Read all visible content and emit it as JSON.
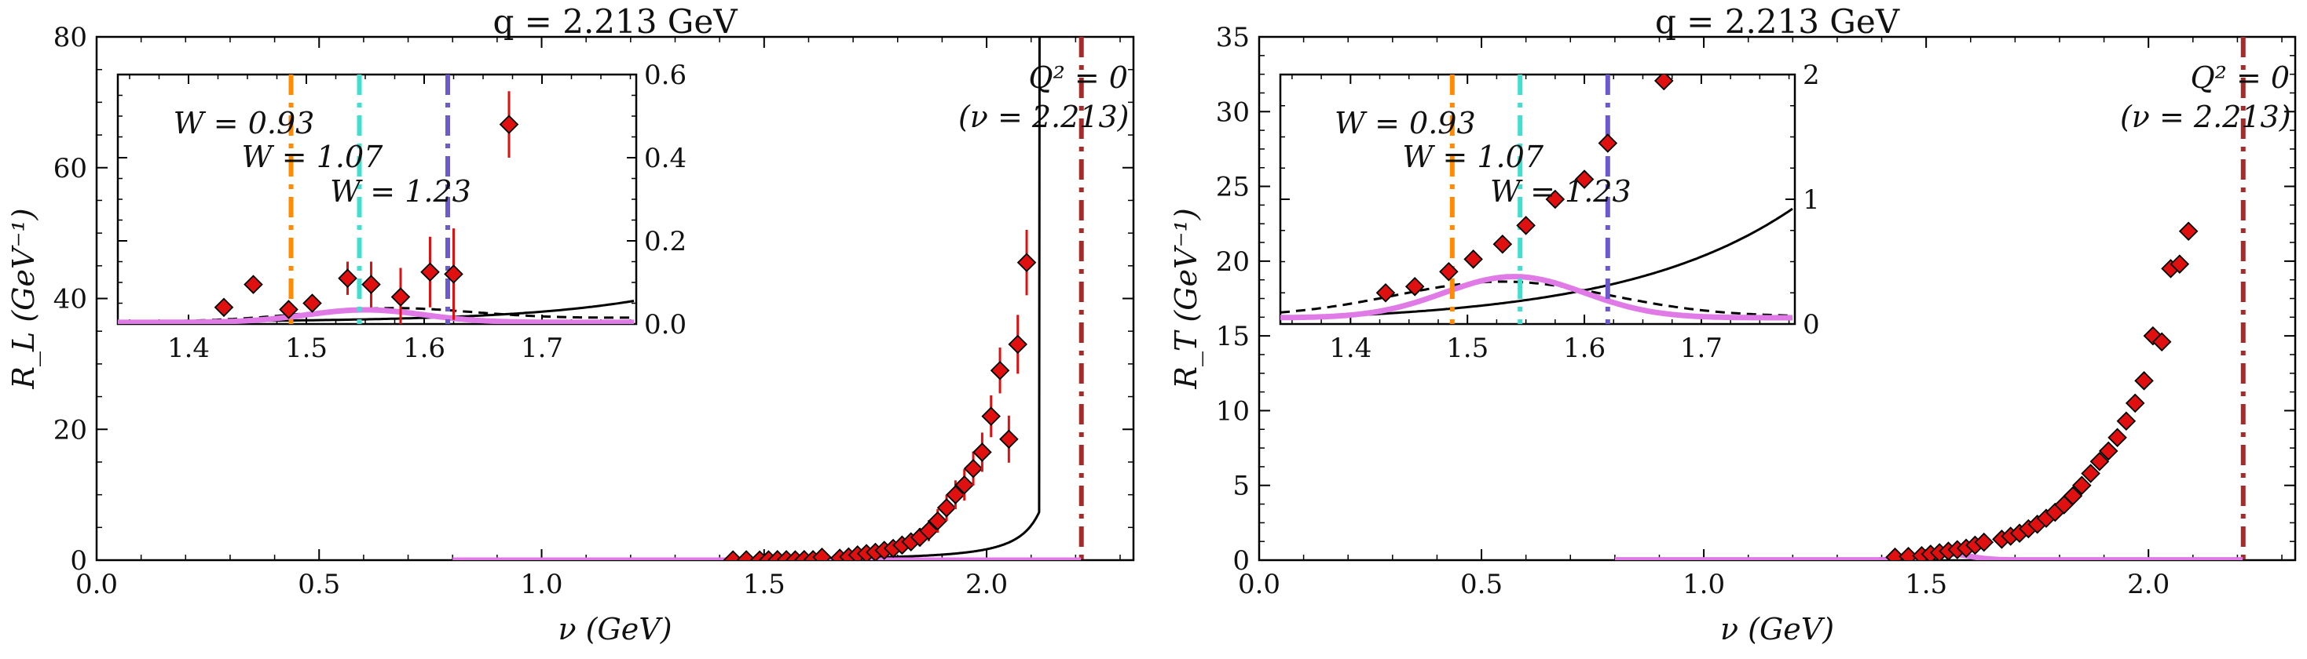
{
  "chart_data": [
    {
      "type": "scatter",
      "title": "q = 2.213 GeV",
      "xlabel": "ν (GeV)",
      "ylabel": "R_L (GeV⁻¹)",
      "xlim": [
        0.0,
        2.33
      ],
      "ylim": [
        0,
        80
      ],
      "xticks": [
        "0.0",
        "0.5",
        "1.0",
        "1.5",
        "2.0"
      ],
      "yticks": [
        "0",
        "20",
        "40",
        "60",
        "80"
      ],
      "grid": false,
      "vline": {
        "x": 2.213,
        "color": "#a52a2a",
        "label": "Q² = 0",
        "sublabel": "(ν = 2.213)"
      },
      "series": [
        {
          "kind": "points",
          "color": "#e01010",
          "x": [
            1.43,
            1.46,
            1.49,
            1.51,
            1.53,
            1.55,
            1.57,
            1.59,
            1.61,
            1.63,
            1.67,
            1.69,
            1.71,
            1.73,
            1.75,
            1.77,
            1.79,
            1.81,
            1.83,
            1.85,
            1.87,
            1.89,
            1.91,
            1.93,
            1.95,
            1.97,
            1.99,
            2.01,
            2.03,
            2.05,
            2.07,
            2.09
          ],
          "y": [
            0.04,
            0.06,
            0.03,
            0.05,
            0.08,
            0.07,
            0.05,
            0.09,
            0.08,
            0.45,
            0.3,
            0.5,
            0.8,
            1.0,
            1.2,
            1.5,
            1.8,
            2.3,
            2.8,
            3.5,
            4.5,
            6.0,
            8.0,
            10.0,
            11.5,
            14.0,
            16.5,
            22.0,
            29.0,
            18.5,
            33.0,
            45.5
          ],
          "yerr": [
            0.05,
            0.05,
            0.05,
            0.05,
            0.1,
            0.1,
            0.1,
            0.1,
            0.1,
            0.3,
            0.4,
            0.5,
            0.6,
            0.7,
            0.8,
            0.9,
            1.0,
            1.1,
            1.2,
            1.4,
            1.6,
            1.8,
            2.0,
            2.2,
            2.4,
            2.6,
            3.0,
            3.2,
            3.5,
            3.6,
            4.5,
            5.0
          ]
        },
        {
          "kind": "curve",
          "color": "#000000",
          "dash": "",
          "func": "rl_solid"
        },
        {
          "kind": "curve",
          "color": "#000000",
          "dash": "12,8",
          "func": "rl_dash"
        },
        {
          "kind": "curve",
          "color": "#e07ae6",
          "dash": "",
          "func": "rl_magenta"
        }
      ],
      "inset": {
        "xlim": [
          1.34,
          1.78
        ],
        "ylim": [
          0,
          0.6
        ],
        "xticks": [
          "1.4",
          "1.5",
          "1.6",
          "1.7"
        ],
        "yticks": [
          "0.0",
          "0.2",
          "0.4",
          "0.6"
        ],
        "vlines": [
          {
            "x": 1.487,
            "color": "#ff8c00",
            "label": "W = 0.93"
          },
          {
            "x": 1.545,
            "color": "#40e0d0",
            "label": "W = 1.07"
          },
          {
            "x": 1.62,
            "color": "#6a5acd",
            "label": "W = 1.23"
          }
        ],
        "points": {
          "x": [
            1.43,
            1.455,
            1.485,
            1.505,
            1.535,
            1.555,
            1.58,
            1.605,
            1.625,
            1.672
          ],
          "y": [
            0.04,
            0.095,
            0.035,
            0.05,
            0.11,
            0.095,
            0.065,
            0.125,
            0.12,
            0.48
          ],
          "yerr": [
            0.01,
            0.01,
            0.015,
            0.02,
            0.04,
            0.055,
            0.07,
            0.085,
            0.11,
            0.08
          ]
        }
      }
    },
    {
      "type": "scatter",
      "title": "q = 2.213 GeV",
      "xlabel": "ν (GeV)",
      "ylabel": "R_T (GeV⁻¹)",
      "xlim": [
        0.0,
        2.33
      ],
      "ylim": [
        0,
        35
      ],
      "xticks": [
        "0.0",
        "0.5",
        "1.0",
        "1.5",
        "2.0"
      ],
      "yticks": [
        "0",
        "5",
        "10",
        "15",
        "20",
        "25",
        "30",
        "35"
      ],
      "grid": false,
      "vline": {
        "x": 2.213,
        "color": "#a52a2a",
        "label": "Q² = 0",
        "sublabel": "(ν = 2.213)"
      },
      "series": [
        {
          "kind": "points",
          "color": "#e01010",
          "x": [
            1.43,
            1.46,
            1.49,
            1.51,
            1.53,
            1.55,
            1.57,
            1.59,
            1.61,
            1.63,
            1.67,
            1.69,
            1.71,
            1.73,
            1.75,
            1.77,
            1.79,
            1.81,
            1.83,
            1.85,
            1.87,
            1.89,
            1.91,
            1.93,
            1.95,
            1.97,
            1.99,
            2.01,
            2.03,
            2.05,
            2.07,
            2.09
          ],
          "y": [
            0.2,
            0.25,
            0.3,
            0.4,
            0.5,
            0.6,
            0.7,
            0.8,
            1.0,
            1.2,
            1.4,
            1.6,
            1.8,
            2.1,
            2.4,
            2.8,
            3.2,
            3.7,
            4.3,
            5.0,
            5.8,
            6.6,
            7.3,
            8.2,
            9.3,
            10.5,
            12.0,
            15.0,
            14.6,
            19.5,
            19.8,
            22.0
          ],
          "yerr": [
            0.05,
            0.05,
            0.05,
            0.05,
            0.05,
            0.05,
            0.05,
            0.05,
            0.05,
            0.05,
            0.05,
            0.05,
            0.05,
            0.05,
            0.05,
            0.05,
            0.05,
            0.05,
            0.05,
            0.05,
            0.05,
            0.05,
            0.05,
            0.05,
            0.05,
            0.05,
            0.05,
            0.05,
            0.05,
            0.05,
            0.05,
            0.5
          ]
        },
        {
          "kind": "curve",
          "color": "#000000",
          "dash": "",
          "func": "rt_solid"
        },
        {
          "kind": "curve",
          "color": "#000000",
          "dash": "12,8",
          "func": "rt_dash"
        },
        {
          "kind": "curve",
          "color": "#e07ae6",
          "dash": "",
          "func": "rt_magenta"
        }
      ],
      "inset": {
        "xlim": [
          1.34,
          1.78
        ],
        "ylim": [
          0,
          2
        ],
        "xticks": [
          "1.4",
          "1.5",
          "1.6",
          "1.7"
        ],
        "yticks": [
          "0",
          "1",
          "2"
        ],
        "vlines": [
          {
            "x": 1.487,
            "color": "#ff8c00",
            "label": "W = 0.93"
          },
          {
            "x": 1.545,
            "color": "#40e0d0",
            "label": "W = 1.07"
          },
          {
            "x": 1.62,
            "color": "#6a5acd",
            "label": "W = 1.23"
          }
        ],
        "points": {
          "x": [
            1.43,
            1.455,
            1.484,
            1.505,
            1.53,
            1.55,
            1.575,
            1.6,
            1.62,
            1.668
          ],
          "y": [
            0.25,
            0.3,
            0.42,
            0.52,
            0.64,
            0.79,
            1.0,
            1.16,
            1.45,
            1.95
          ],
          "yerr": [
            0.02,
            0.02,
            0.02,
            0.02,
            0.02,
            0.02,
            0.02,
            0.03,
            0.03,
            0.05
          ]
        }
      }
    }
  ]
}
